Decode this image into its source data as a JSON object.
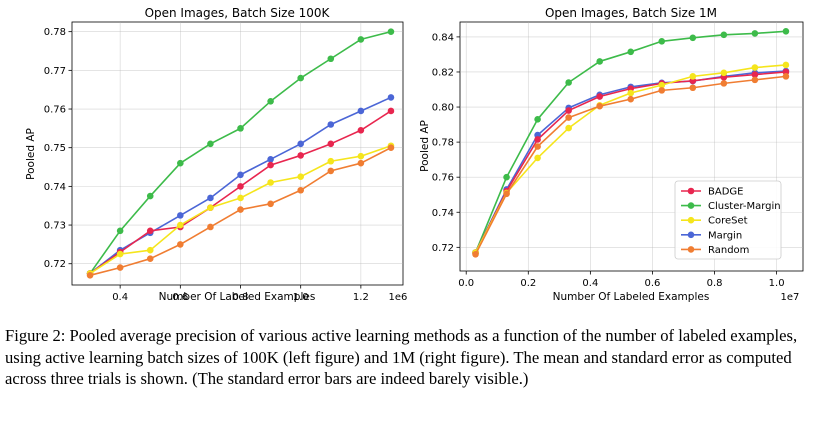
{
  "colors": {
    "BADGE": "#e8264f",
    "Cluster-Margin": "#3dbb4a",
    "CoreSet": "#f5e51c",
    "Margin": "#4b66d6",
    "Random": "#f07d32",
    "grid": "#b0b0b0"
  },
  "chart_data": [
    {
      "type": "line",
      "title": "Open Images, Batch Size 100K",
      "xlabel": "Number Of Labeled Examples",
      "ylabel": "Pooled AP",
      "x_offset_label": "1e6",
      "xlim": [
        0.24,
        1.34
      ],
      "ylim": [
        0.7145,
        0.7825
      ],
      "xticks": [
        0.4,
        0.6,
        0.8,
        1.0,
        1.2
      ],
      "xtick_labels": [
        "0.4",
        "0.6",
        "0.8",
        "1.0",
        "1.2"
      ],
      "yticks": [
        0.72,
        0.73,
        0.74,
        0.75,
        0.76,
        0.77,
        0.78
      ],
      "ytick_labels": [
        "0.72",
        "0.73",
        "0.74",
        "0.75",
        "0.76",
        "0.77",
        "0.78"
      ],
      "grid": true,
      "x": [
        0.3,
        0.4,
        0.5,
        0.6,
        0.7,
        0.8,
        0.9,
        1.0,
        1.1,
        1.2,
        1.3
      ],
      "series": [
        {
          "name": "Cluster-Margin",
          "values": [
            0.7175,
            0.7285,
            0.7375,
            0.746,
            0.751,
            0.755,
            0.762,
            0.768,
            0.773,
            0.778,
            0.78
          ]
        },
        {
          "name": "Margin",
          "values": [
            0.7175,
            0.7235,
            0.728,
            0.7325,
            0.737,
            0.743,
            0.747,
            0.751,
            0.756,
            0.7595,
            0.763
          ]
        },
        {
          "name": "BADGE",
          "values": [
            0.7175,
            0.723,
            0.7285,
            0.7295,
            0.7345,
            0.74,
            0.7455,
            0.748,
            0.751,
            0.7545,
            0.7595
          ]
        },
        {
          "name": "CoreSet",
          "values": [
            0.7175,
            0.7225,
            0.7235,
            0.73,
            0.7345,
            0.737,
            0.741,
            0.7425,
            0.7465,
            0.7478,
            0.7505
          ]
        },
        {
          "name": "Random",
          "values": [
            0.717,
            0.719,
            0.7213,
            0.725,
            0.7295,
            0.734,
            0.7355,
            0.739,
            0.744,
            0.746,
            0.75
          ]
        }
      ]
    },
    {
      "type": "line",
      "title": "Open Images, Batch Size 1M",
      "xlabel": "Number Of Labeled Examples",
      "ylabel": "Pooled AP",
      "x_offset_label": "1e7",
      "xlim": [
        -0.02,
        1.085
      ],
      "ylim": [
        0.7065,
        0.8485
      ],
      "xticks": [
        0.0,
        0.2,
        0.4,
        0.6,
        0.8,
        1.0
      ],
      "xtick_labels": [
        "0.0",
        "0.2",
        "0.4",
        "0.6",
        "0.8",
        "1.0"
      ],
      "yticks": [
        0.72,
        0.74,
        0.76,
        0.78,
        0.8,
        0.82,
        0.84
      ],
      "ytick_labels": [
        "0.72",
        "0.74",
        "0.76",
        "0.78",
        "0.80",
        "0.82",
        "0.84"
      ],
      "grid": true,
      "legend_position": "lower-right",
      "legend": [
        "BADGE",
        "Cluster-Margin",
        "CoreSet",
        "Margin",
        "Random"
      ],
      "x": [
        0.03,
        0.13,
        0.23,
        0.33,
        0.43,
        0.53,
        0.63,
        0.73,
        0.83,
        0.93,
        1.03
      ],
      "series": [
        {
          "name": "Cluster-Margin",
          "values": [
            0.717,
            0.76,
            0.793,
            0.814,
            0.826,
            0.8315,
            0.8375,
            0.8395,
            0.8412,
            0.842,
            0.8432
          ]
        },
        {
          "name": "Margin",
          "values": [
            0.717,
            0.753,
            0.784,
            0.7995,
            0.807,
            0.8115,
            0.8138,
            0.8148,
            0.8175,
            0.8195,
            0.8205
          ]
        },
        {
          "name": "BADGE",
          "values": [
            0.717,
            0.752,
            0.7815,
            0.798,
            0.806,
            0.8105,
            0.8135,
            0.815,
            0.817,
            0.8185,
            0.82
          ]
        },
        {
          "name": "CoreSet",
          "values": [
            0.717,
            0.751,
            0.771,
            0.788,
            0.801,
            0.808,
            0.8125,
            0.8175,
            0.8195,
            0.8225,
            0.824
          ]
        },
        {
          "name": "Random",
          "values": [
            0.716,
            0.7505,
            0.7775,
            0.794,
            0.8005,
            0.8045,
            0.8095,
            0.811,
            0.8135,
            0.8155,
            0.8175
          ]
        }
      ]
    }
  ],
  "caption": "Figure 2: Pooled average precision of various active learning methods as a function of the number of labeled examples, using active learning batch sizes of 100K (left figure) and 1M (right figure). The mean and standard error as computed across three trials is shown. (The standard error bars are indeed barely visible.)"
}
